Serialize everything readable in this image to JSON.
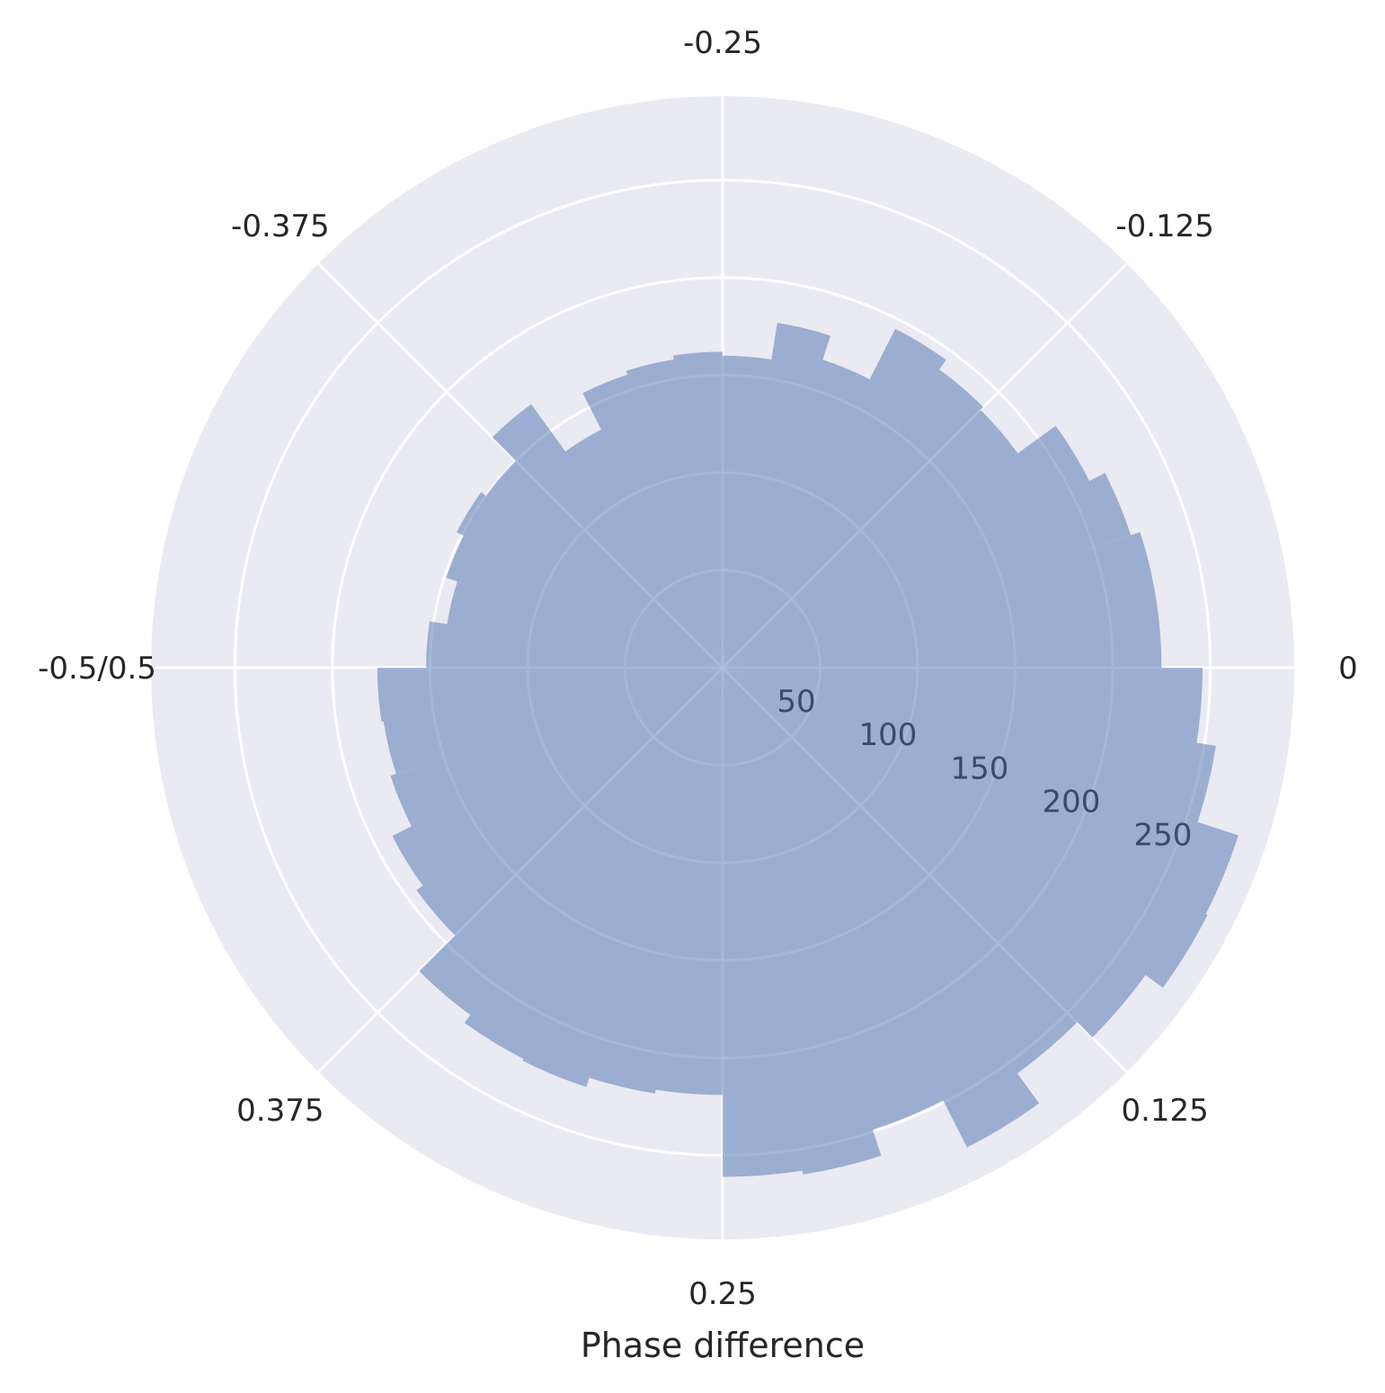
{
  "chart_data": {
    "type": "bar",
    "subtype": "polar-histogram",
    "xlabel": "Phase difference",
    "angular_ticks": [
      {
        "label": "0",
        "phase": 0
      },
      {
        "label": "-0.125",
        "phase": -0.125
      },
      {
        "label": "-0.25",
        "phase": -0.25
      },
      {
        "label": "-0.375",
        "phase": -0.375
      },
      {
        "label": "-0.5/0.5",
        "phase": 0.5
      },
      {
        "label": "0.375",
        "phase": 0.375
      },
      {
        "label": "0.25",
        "phase": 0.25
      },
      {
        "label": "0.125",
        "phase": 0.125
      }
    ],
    "radial_ticks": [
      50,
      100,
      150,
      200,
      250
    ],
    "rlim": [
      0,
      293
    ],
    "bin_range": [
      0,
      1
    ],
    "bin_count": 40,
    "values": [
      246,
      256,
      278,
      279,
      268,
      257,
      276,
      249,
      263,
      261,
      219,
      221,
      226,
      225,
      220,
      194,
      190,
      179,
      176,
      177,
      152,
      143,
      149,
      153,
      150,
      167,
      137,
      158,
      160,
      162,
      160,
      179,
      166,
      195,
      189,
      187,
      211,
      220,
      225,
      225
    ],
    "grid": true,
    "colors": {
      "background": "#EAEAF2",
      "bar": "#4C72B0",
      "bar_alpha": 0.5,
      "grid": "#FFFFFF"
    }
  }
}
